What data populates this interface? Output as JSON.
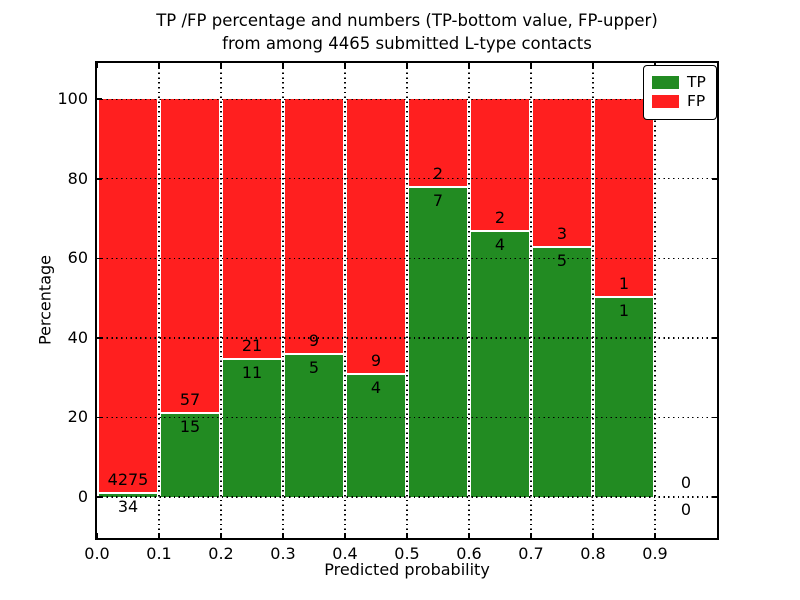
{
  "chart_data": {
    "type": "bar",
    "variant": "stacked-percentage",
    "title_line1": "TP /FP percentage and numbers (TP-bottom value, FP-upper)",
    "title_line2": "from among 4465 submitted L-type contacts",
    "xlabel": "Predicted probability",
    "ylabel": "Percentage",
    "xlim": [
      0.0,
      1.0
    ],
    "ylim": [
      -10.3,
      109.1
    ],
    "grid": "dotted-black-on-top",
    "legend_position": "upper-right",
    "xticks": {
      "values": [
        0.0,
        0.1,
        0.2,
        0.3,
        0.4,
        0.5,
        0.6,
        0.7,
        0.8,
        0.9
      ],
      "labels": [
        "0.0",
        "0.1",
        "0.2",
        "0.3",
        "0.4",
        "0.5",
        "0.6",
        "0.7",
        "0.8",
        "0.9"
      ]
    },
    "yticks": {
      "values": [
        0,
        20,
        40,
        60,
        80,
        100
      ],
      "labels": [
        "0",
        "20",
        "40",
        "60",
        "80",
        "100"
      ]
    },
    "series": [
      {
        "name": "TP",
        "color": "#228B22"
      },
      {
        "name": "FP",
        "color": "#ff1f1f"
      }
    ],
    "bins": [
      {
        "x0": 0.0,
        "x1": 0.1,
        "tp": 34,
        "fp": 4275,
        "tp_pct": 0.79,
        "fp_pct": 99.21
      },
      {
        "x0": 0.1,
        "x1": 0.2,
        "tp": 15,
        "fp": 57,
        "tp_pct": 20.83,
        "fp_pct": 79.17
      },
      {
        "x0": 0.2,
        "x1": 0.3,
        "tp": 11,
        "fp": 21,
        "tp_pct": 34.38,
        "fp_pct": 65.62
      },
      {
        "x0": 0.3,
        "x1": 0.4,
        "tp": 5,
        "fp": 9,
        "tp_pct": 35.71,
        "fp_pct": 64.29
      },
      {
        "x0": 0.4,
        "x1": 0.5,
        "tp": 4,
        "fp": 9,
        "tp_pct": 30.77,
        "fp_pct": 69.23
      },
      {
        "x0": 0.5,
        "x1": 0.6,
        "tp": 7,
        "fp": 2,
        "tp_pct": 77.78,
        "fp_pct": 22.22
      },
      {
        "x0": 0.6,
        "x1": 0.7,
        "tp": 4,
        "fp": 2,
        "tp_pct": 66.67,
        "fp_pct": 33.33
      },
      {
        "x0": 0.7,
        "x1": 0.8,
        "tp": 5,
        "fp": 3,
        "tp_pct": 62.5,
        "fp_pct": 37.5
      },
      {
        "x0": 0.8,
        "x1": 0.9,
        "tp": 1,
        "fp": 1,
        "tp_pct": 50.0,
        "fp_pct": 50.0
      },
      {
        "x0": 0.9,
        "x1": 1.0,
        "tp": 0,
        "fp": 0,
        "tp_pct": 0,
        "fp_pct": 0
      }
    ]
  }
}
